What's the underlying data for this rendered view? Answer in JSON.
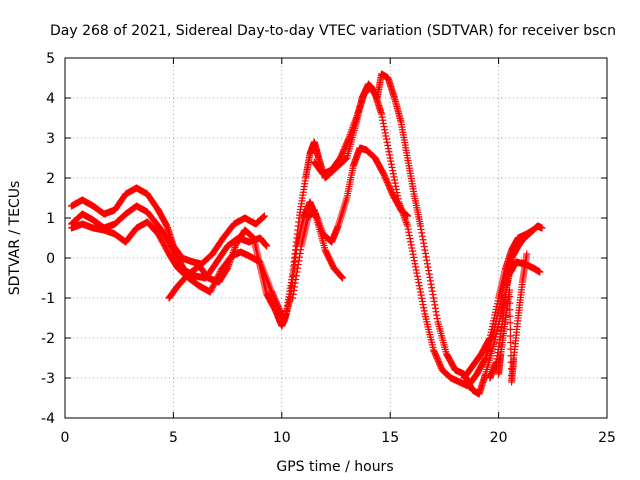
{
  "chart_data": {
    "type": "scatter",
    "title": "Day 268 of 2021, Sidereal Day-to-day VTEC variation (SDTVAR) for receiver bscn",
    "xlabel": "GPS time / hours",
    "ylabel": "SDTVAR / TECUs",
    "xlim": [
      0,
      25
    ],
    "ylim": [
      -4,
      5
    ],
    "xticks": [
      0,
      5,
      10,
      15,
      20,
      25
    ],
    "yticks": [
      -4,
      -3,
      -2,
      -1,
      0,
      1,
      2,
      3,
      4,
      5
    ],
    "grid": true,
    "marker": "+",
    "color": "#ff0000",
    "series": [
      {
        "points": [
          [
            0.3,
            1.3
          ],
          [
            0.8,
            1.45
          ],
          [
            1.3,
            1.3
          ],
          [
            1.8,
            1.1
          ],
          [
            2.3,
            1.2
          ],
          [
            2.8,
            1.6
          ],
          [
            3.3,
            1.75
          ],
          [
            3.8,
            1.6
          ],
          [
            4.3,
            1.2
          ],
          [
            4.7,
            0.8
          ],
          [
            5.0,
            0.3
          ],
          [
            5.4,
            0.0
          ],
          [
            5.9,
            -0.1
          ],
          [
            6.3,
            -0.15
          ],
          [
            6.8,
            0.1
          ],
          [
            7.3,
            0.5
          ],
          [
            7.8,
            0.85
          ],
          [
            8.3,
            1.0
          ],
          [
            8.8,
            0.85
          ],
          [
            9.2,
            1.05
          ]
        ]
      },
      {
        "points": [
          [
            0.3,
            0.85
          ],
          [
            0.8,
            1.1
          ],
          [
            1.3,
            0.95
          ],
          [
            1.8,
            0.75
          ],
          [
            2.3,
            0.85
          ],
          [
            2.8,
            1.1
          ],
          [
            3.3,
            1.3
          ],
          [
            3.8,
            1.15
          ],
          [
            4.3,
            0.8
          ],
          [
            4.7,
            0.5
          ],
          [
            5.1,
            0.1
          ],
          [
            5.5,
            -0.3
          ],
          [
            6.0,
            -0.45
          ],
          [
            6.5,
            -0.5
          ],
          [
            7.0,
            -0.1
          ],
          [
            7.5,
            0.3
          ],
          [
            8.0,
            0.5
          ],
          [
            8.5,
            0.4
          ],
          [
            9.0,
            0.5
          ],
          [
            9.3,
            0.3
          ]
        ]
      },
      {
        "points": [
          [
            0.3,
            0.75
          ],
          [
            0.8,
            0.85
          ],
          [
            1.3,
            0.75
          ],
          [
            1.8,
            0.7
          ],
          [
            2.3,
            0.6
          ],
          [
            2.8,
            0.4
          ],
          [
            3.3,
            0.75
          ],
          [
            3.8,
            0.9
          ],
          [
            4.3,
            0.6
          ],
          [
            4.8,
            0.1
          ],
          [
            5.2,
            -0.25
          ],
          [
            5.7,
            -0.5
          ],
          [
            6.2,
            -0.7
          ],
          [
            6.7,
            -0.85
          ],
          [
            7.2,
            -0.3
          ],
          [
            7.7,
            0.05
          ],
          [
            8.1,
            0.15
          ],
          [
            8.5,
            0.05
          ],
          [
            9.0,
            -0.1
          ],
          [
            9.5,
            -0.8
          ],
          [
            9.9,
            -1.3
          ],
          [
            10.1,
            -1.6
          ],
          [
            10.4,
            -1.0
          ],
          [
            10.7,
            0.3
          ],
          [
            11.0,
            1.0
          ],
          [
            11.3,
            1.4
          ],
          [
            11.6,
            1.0
          ],
          [
            12.0,
            0.2
          ],
          [
            12.4,
            -0.25
          ],
          [
            12.8,
            -0.5
          ]
        ]
      },
      {
        "points": [
          [
            4.8,
            -1.0
          ],
          [
            5.2,
            -0.7
          ],
          [
            5.7,
            -0.4
          ],
          [
            6.2,
            -0.2
          ],
          [
            6.6,
            -0.5
          ],
          [
            7.1,
            -0.6
          ],
          [
            7.5,
            -0.25
          ],
          [
            7.9,
            0.35
          ],
          [
            8.3,
            0.7
          ],
          [
            8.7,
            0.5
          ],
          [
            9.0,
            -0.2
          ],
          [
            9.3,
            -0.9
          ],
          [
            9.7,
            -1.3
          ],
          [
            10.0,
            -1.7
          ],
          [
            10.2,
            -1.4
          ],
          [
            10.5,
            -0.4
          ],
          [
            10.8,
            1.0
          ],
          [
            11.1,
            2.0
          ],
          [
            11.3,
            2.6
          ],
          [
            11.5,
            2.9
          ],
          [
            11.7,
            2.5
          ],
          [
            12.0,
            2.0
          ],
          [
            12.5,
            2.25
          ],
          [
            13.0,
            2.5
          ],
          [
            13.4,
            3.3
          ],
          [
            13.7,
            4.0
          ],
          [
            14.0,
            4.35
          ],
          [
            14.3,
            4.1
          ],
          [
            14.6,
            3.6
          ],
          [
            15.0,
            2.5
          ],
          [
            15.4,
            1.4
          ],
          [
            15.8,
            0.8
          ],
          [
            16.2,
            -0.3
          ],
          [
            16.6,
            -1.4
          ],
          [
            17.0,
            -2.3
          ],
          [
            17.4,
            -2.8
          ],
          [
            17.8,
            -3.0
          ],
          [
            18.2,
            -3.1
          ],
          [
            18.6,
            -3.2
          ],
          [
            19.0,
            -2.9
          ],
          [
            19.4,
            -2.5
          ],
          [
            19.8,
            -1.8
          ],
          [
            20.2,
            -0.8
          ],
          [
            20.6,
            0.0
          ],
          [
            21.0,
            0.4
          ],
          [
            21.4,
            0.6
          ],
          [
            21.8,
            0.8
          ],
          [
            22.0,
            0.75
          ]
        ]
      },
      {
        "points": [
          [
            10.5,
            -1.0
          ],
          [
            10.9,
            0.3
          ],
          [
            11.2,
            1.0
          ],
          [
            11.5,
            1.2
          ],
          [
            11.9,
            0.6
          ],
          [
            12.3,
            0.4
          ],
          [
            12.6,
            0.8
          ],
          [
            13.0,
            1.5
          ],
          [
            13.3,
            2.3
          ],
          [
            13.6,
            2.75
          ],
          [
            13.9,
            2.7
          ],
          [
            14.3,
            2.5
          ],
          [
            14.7,
            2.1
          ],
          [
            15.1,
            1.6
          ],
          [
            15.5,
            1.2
          ],
          [
            15.8,
            1.05
          ]
        ]
      },
      {
        "points": [
          [
            11.5,
            2.4
          ],
          [
            11.9,
            2.1
          ],
          [
            12.3,
            2.2
          ],
          [
            12.7,
            2.5
          ],
          [
            13.1,
            3.0
          ],
          [
            13.5,
            3.6
          ],
          [
            13.8,
            4.1
          ],
          [
            14.1,
            4.3
          ],
          [
            14.4,
            4.0
          ],
          [
            14.6,
            4.6
          ],
          [
            14.9,
            4.5
          ],
          [
            15.2,
            4.0
          ],
          [
            15.5,
            3.4
          ],
          [
            15.8,
            2.5
          ],
          [
            16.1,
            1.6
          ],
          [
            16.4,
            0.8
          ],
          [
            16.8,
            -0.4
          ],
          [
            17.2,
            -1.6
          ],
          [
            17.6,
            -2.4
          ],
          [
            18.0,
            -2.8
          ],
          [
            18.4,
            -2.9
          ],
          [
            18.8,
            -3.3
          ],
          [
            19.1,
            -3.4
          ],
          [
            19.4,
            -2.9
          ],
          [
            19.8,
            -2.1
          ],
          [
            20.2,
            -1.2
          ],
          [
            20.5,
            -0.4
          ],
          [
            20.8,
            -0.1
          ],
          [
            21.2,
            -0.15
          ],
          [
            21.6,
            -0.25
          ],
          [
            21.9,
            -0.35
          ]
        ]
      },
      {
        "points": [
          [
            18.4,
            -3.0
          ],
          [
            18.8,
            -2.7
          ],
          [
            19.2,
            -2.4
          ],
          [
            19.6,
            -2.0
          ],
          [
            20.0,
            -1.0
          ],
          [
            20.3,
            -0.3
          ],
          [
            20.6,
            0.2
          ],
          [
            20.9,
            0.5
          ],
          [
            21.3,
            0.6
          ],
          [
            21.6,
            0.7
          ]
        ]
      },
      {
        "points": [
          [
            19.6,
            -3.0
          ],
          [
            19.9,
            -2.6
          ],
          [
            20.2,
            -1.5
          ],
          [
            20.4,
            -0.6
          ],
          [
            20.6,
            0.0
          ],
          [
            20.9,
            0.3
          ],
          [
            21.1,
            0.45
          ]
        ]
      },
      {
        "points": [
          [
            20.0,
            -2.9
          ],
          [
            20.1,
            -2.4
          ],
          [
            20.3,
            -1.6
          ],
          [
            20.5,
            -0.8
          ],
          [
            20.6,
            -3.1
          ],
          [
            20.7,
            -2.5
          ],
          [
            20.9,
            -1.5
          ],
          [
            21.1,
            -0.6
          ],
          [
            21.3,
            0.1
          ]
        ]
      }
    ]
  }
}
